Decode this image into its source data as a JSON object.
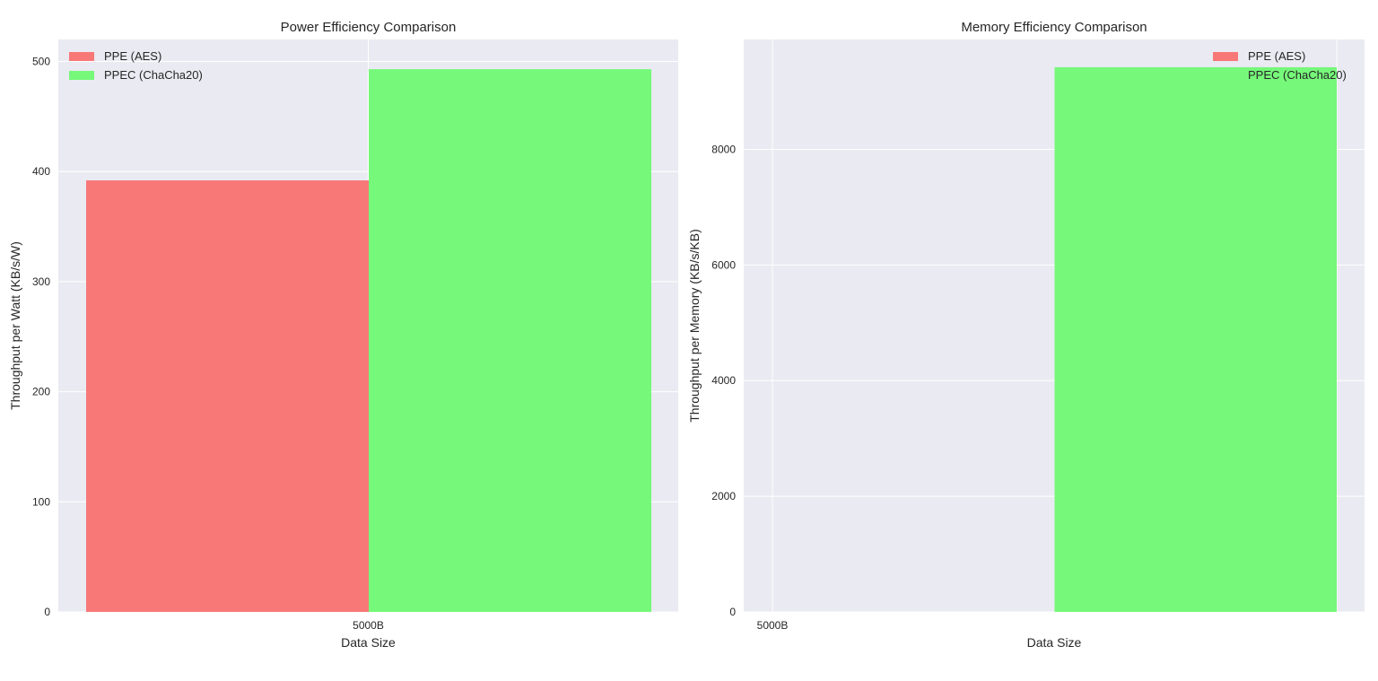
{
  "chart_data": [
    {
      "type": "bar",
      "title": "Power Efficiency Comparison",
      "xlabel": "Data Size",
      "ylabel": "Throughput per Watt (KB/s/W)",
      "categories": [
        "5000B"
      ],
      "series": [
        {
          "name": "PPE (AES)",
          "values": [
            392
          ],
          "color": "#f87878"
        },
        {
          "name": "PPEC (ChaCha20)",
          "values": [
            493
          ],
          "color": "#76f87a"
        }
      ],
      "ylim": [
        0,
        520
      ],
      "yticks": [
        0,
        100,
        200,
        300,
        400,
        500
      ],
      "ytick_labels": [
        "0",
        "100",
        "200",
        "300",
        "400",
        "500"
      ],
      "grid": true,
      "legend_position": "top-left"
    },
    {
      "type": "bar",
      "title": "Memory Efficiency Comparison",
      "xlabel": "Data Size",
      "ylabel": "Throughput per Memory (KB/s/KB)",
      "categories": [
        "5000B"
      ],
      "series": [
        {
          "name": "PPE (AES)",
          "values": [
            0
          ],
          "color": "#f87878"
        },
        {
          "name": "PPEC (ChaCha20)",
          "values": [
            9420
          ],
          "color": "#76f87a"
        }
      ],
      "ylim": [
        0,
        9900
      ],
      "yticks": [
        0,
        2000,
        4000,
        6000,
        8000
      ],
      "ytick_labels": [
        "0",
        "2000",
        "4000",
        "6000",
        "8000"
      ],
      "grid": true,
      "legend_position": "top-right"
    }
  ]
}
